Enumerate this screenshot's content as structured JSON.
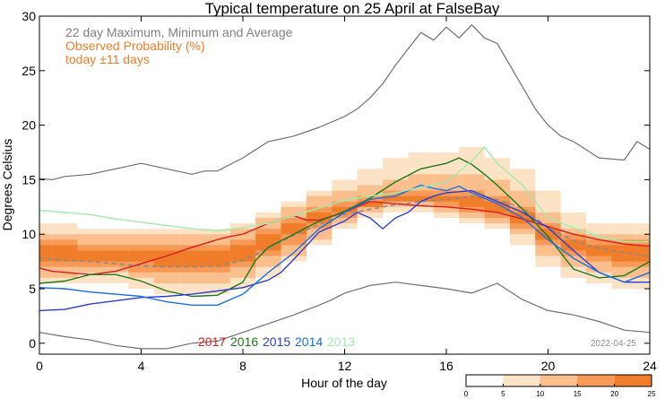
{
  "chart_data": {
    "type": "line",
    "title": "Typical temperature on 25 April at FalseBay",
    "xlabel": "Hour of the day",
    "ylabel": "Degrees Celsius",
    "xlim": [
      0,
      24
    ],
    "ylim": [
      -1,
      30
    ],
    "x_ticks": [
      0,
      4,
      8,
      12,
      16,
      20,
      24
    ],
    "y_ticks": [
      0,
      5,
      10,
      15,
      20,
      25,
      30
    ],
    "annotations": {
      "legend_line1": "22 day Maximum, Minimum and Average",
      "legend_line2": "Observed Probability (%)",
      "legend_line3": "today ±11 days",
      "date_stamp": "2022-04-25"
    },
    "colors": {
      "max_min": "#707070",
      "average": "#8a8a8a",
      "legend_gray": "#808080",
      "legend_orange": "#f07d2a",
      "prob": [
        "#ffffff",
        "#fde3c6",
        "#fbbf8e",
        "#f79a57",
        "#f07d2a"
      ]
    },
    "colorbar": {
      "ticks": [
        "0",
        "5",
        "10",
        "15",
        "20",
        "25"
      ],
      "bins": [
        0,
        5,
        10,
        15,
        20,
        25
      ]
    },
    "hour_bands": {
      "hours": [
        0,
        1,
        2,
        3,
        4,
        5,
        6,
        7,
        8,
        9,
        10,
        11,
        12,
        13,
        14,
        15,
        16,
        17,
        18,
        19,
        20,
        21,
        22,
        23,
        24
      ],
      "b1_lo": [
        5.5,
        5.5,
        5.5,
        5.5,
        5.0,
        4.5,
        4.5,
        4.5,
        5.0,
        6.0,
        7.5,
        9.0,
        10.5,
        11.5,
        12.0,
        12.0,
        11.5,
        11.0,
        10.5,
        9.0,
        7.0,
        6.0,
        5.5,
        5.0,
        5.0
      ],
      "b1_hi": [
        11.0,
        11.0,
        10.5,
        10.5,
        10.5,
        10.5,
        10.5,
        10.5,
        11.0,
        12.0,
        13.0,
        14.0,
        15.0,
        16.0,
        17.0,
        17.5,
        17.5,
        18.0,
        17.0,
        16.0,
        14.0,
        12.0,
        11.0,
        11.0,
        11.0
      ],
      "b2_lo": [
        6.0,
        6.0,
        6.5,
        6.5,
        6.0,
        5.5,
        5.5,
        5.5,
        6.0,
        7.0,
        8.0,
        9.5,
        11.0,
        12.0,
        12.5,
        12.5,
        12.0,
        11.5,
        11.0,
        10.0,
        8.0,
        7.0,
        6.5,
        6.0,
        6.0
      ],
      "b2_hi": [
        10.0,
        10.0,
        10.0,
        10.0,
        10.0,
        10.0,
        10.0,
        10.0,
        10.5,
        11.5,
        12.5,
        13.5,
        14.0,
        14.5,
        15.0,
        15.5,
        15.5,
        15.5,
        15.0,
        14.0,
        12.0,
        10.5,
        10.0,
        10.0,
        10.0
      ],
      "b3_lo": [
        7.0,
        7.0,
        7.0,
        7.0,
        6.5,
        6.5,
        6.5,
        6.5,
        7.0,
        8.0,
        9.0,
        10.5,
        11.5,
        12.5,
        13.0,
        13.0,
        12.5,
        12.0,
        11.5,
        10.5,
        9.0,
        8.0,
        7.5,
        7.0,
        7.0
      ],
      "b3_hi": [
        9.5,
        9.5,
        9.0,
        9.0,
        9.0,
        9.0,
        9.0,
        9.0,
        9.5,
        10.5,
        11.5,
        12.5,
        13.0,
        13.5,
        14.0,
        14.0,
        14.0,
        14.0,
        13.5,
        12.5,
        11.0,
        10.0,
        9.5,
        9.5,
        9.5
      ],
      "b4_lo": [
        7.5,
        7.5,
        7.5,
        7.5,
        7.5,
        7.0,
        7.0,
        7.0,
        7.5,
        8.5,
        10.0,
        11.0,
        12.0,
        12.5,
        13.0,
        13.0,
        13.0,
        12.5,
        12.0,
        11.0,
        9.5,
        8.5,
        8.0,
        7.5,
        7.5
      ],
      "b4_hi": [
        9.0,
        9.0,
        8.5,
        8.5,
        8.5,
        8.5,
        8.5,
        8.5,
        9.0,
        10.0,
        11.0,
        12.0,
        12.5,
        13.0,
        13.5,
        13.5,
        13.5,
        13.5,
        13.0,
        12.0,
        10.5,
        9.5,
        9.0,
        9.0,
        9.0
      ]
    },
    "series": [
      {
        "name": "Maximum",
        "color": "#707070",
        "x": [
          0,
          0.5,
          1,
          2,
          3,
          4,
          5,
          6,
          6.5,
          7,
          8,
          9,
          10,
          11,
          12,
          12.5,
          13,
          13.5,
          14,
          14.5,
          15,
          15.5,
          16,
          16.5,
          17,
          17.5,
          18,
          18.5,
          19,
          19.5,
          20,
          20.5,
          21,
          22,
          23,
          23.5,
          24
        ],
        "values": [
          15.1,
          15.0,
          15.3,
          15.5,
          16.0,
          16.5,
          16.0,
          15.5,
          15.8,
          15.8,
          17.0,
          18.5,
          19.0,
          19.8,
          20.8,
          21.5,
          22.5,
          23.8,
          25.5,
          27.0,
          28.5,
          27.8,
          29.0,
          28.0,
          29.2,
          28.0,
          27.5,
          25.5,
          23.5,
          21.5,
          20.0,
          19.0,
          18.5,
          17.0,
          16.8,
          18.5,
          17.8
        ]
      },
      {
        "name": "Minimum",
        "color": "#707070",
        "x": [
          0,
          1,
          2,
          3,
          4,
          5,
          6,
          7,
          8,
          9,
          10,
          11,
          11.5,
          12,
          13,
          14,
          15,
          16,
          17,
          18,
          19,
          20,
          21,
          22,
          23,
          24
        ],
        "values": [
          1.0,
          0.6,
          0.3,
          -0.2,
          -0.5,
          -0.5,
          0.0,
          0.2,
          1.0,
          1.8,
          2.6,
          3.5,
          4.0,
          4.6,
          5.3,
          5.6,
          5.3,
          5.0,
          4.6,
          5.5,
          4.0,
          3.0,
          2.6,
          2.0,
          1.2,
          1.0
        ]
      },
      {
        "name": "Average",
        "color": "#8a8a8a",
        "x": [
          0,
          1,
          2,
          3,
          4,
          5,
          6,
          7,
          8,
          9,
          10,
          11,
          12,
          13,
          14,
          15,
          16,
          17,
          18,
          19,
          20,
          21,
          22,
          23,
          24
        ],
        "values": [
          7.8,
          7.6,
          7.5,
          7.3,
          7.1,
          7.0,
          7.0,
          7.1,
          7.6,
          8.7,
          9.9,
          10.9,
          11.8,
          12.3,
          12.7,
          13.0,
          13.2,
          13.5,
          13.2,
          12.4,
          10.6,
          9.4,
          8.7,
          8.3,
          8.0
        ]
      },
      {
        "name": "2017",
        "color": "#d81e1e",
        "x": [
          0,
          0.5,
          1,
          2,
          3,
          4,
          5,
          6,
          7,
          7.5,
          8,
          9,
          10,
          10.5,
          11,
          12,
          13,
          14,
          15,
          16,
          17,
          18,
          19,
          20,
          21,
          22,
          23,
          24
        ],
        "values": [
          6.9,
          6.6,
          6.5,
          6.3,
          6.6,
          7.3,
          8.0,
          8.8,
          9.5,
          9.8,
          10.0,
          11.0,
          11.7,
          11.3,
          11.3,
          12.0,
          13.0,
          12.8,
          12.6,
          12.5,
          12.3,
          12.0,
          11.4,
          10.7,
          10.0,
          9.5,
          9.1,
          8.9
        ]
      },
      {
        "name": "2016",
        "color": "#1a7a1a",
        "x": [
          0,
          1,
          2,
          3,
          4,
          5,
          6,
          7,
          8,
          8.5,
          9,
          10,
          11,
          12,
          13,
          14,
          15,
          16,
          16.5,
          17,
          17.5,
          18,
          19,
          20,
          21,
          22,
          23,
          24
        ],
        "values": [
          5.5,
          5.7,
          6.3,
          6.3,
          5.7,
          4.8,
          4.3,
          4.4,
          5.6,
          7.6,
          8.8,
          10.0,
          11.2,
          12.1,
          13.3,
          14.8,
          16.0,
          16.5,
          17.0,
          16.4,
          15.5,
          14.5,
          12.3,
          9.8,
          6.8,
          6.0,
          6.2,
          7.5
        ]
      },
      {
        "name": "2015",
        "color": "#2b3fcf",
        "x": [
          0,
          1,
          2,
          3,
          4,
          5,
          6,
          7,
          8,
          9,
          9.5,
          10,
          11,
          12,
          12.5,
          13,
          13.5,
          14,
          14.5,
          15,
          15.5,
          16,
          17,
          17.5,
          18,
          19,
          20,
          21,
          22,
          23,
          24
        ],
        "values": [
          3.0,
          3.1,
          3.6,
          3.9,
          4.2,
          4.3,
          4.5,
          4.8,
          5.1,
          5.8,
          6.5,
          7.7,
          10.2,
          11.2,
          12.0,
          11.5,
          10.5,
          11.5,
          12.0,
          13.0,
          13.5,
          13.8,
          14.0,
          13.5,
          13.0,
          12.0,
          10.6,
          8.5,
          6.5,
          5.6,
          5.6
        ]
      },
      {
        "name": "2014",
        "color": "#1a6fe6",
        "x": [
          0,
          1,
          2,
          3,
          4,
          5,
          6,
          7,
          8,
          9,
          10,
          11,
          12,
          13,
          14,
          15,
          15.5,
          16,
          16.5,
          17,
          18,
          19,
          20,
          21,
          22,
          23,
          24
        ],
        "values": [
          5.1,
          5.0,
          4.7,
          4.5,
          4.3,
          3.8,
          3.5,
          3.5,
          4.5,
          6.5,
          8.3,
          10.5,
          12.0,
          13.2,
          13.5,
          14.5,
          14.2,
          14.0,
          14.4,
          13.8,
          12.8,
          11.5,
          9.5,
          7.8,
          6.5,
          5.6,
          6.5
        ]
      },
      {
        "name": "2013",
        "color": "#a0ecac",
        "x": [
          0,
          1,
          2,
          3,
          4,
          5,
          6,
          7,
          8,
          9,
          10,
          11,
          12,
          13,
          14,
          15,
          16,
          17,
          17.5,
          18,
          19,
          20,
          21,
          22,
          23,
          24
        ],
        "values": [
          12.2,
          12.0,
          11.8,
          11.4,
          11.1,
          10.8,
          10.5,
          10.3,
          10.6,
          11.0,
          11.7,
          12.4,
          13.1,
          13.5,
          13.8,
          14.3,
          14.8,
          16.7,
          18.0,
          16.5,
          14.5,
          11.5,
          10.6,
          9.8,
          9.3,
          9.3
        ]
      }
    ],
    "year_labels": [
      {
        "text": "2017",
        "color": "#d81e1e"
      },
      {
        "text": "2016",
        "color": "#1a7a1a"
      },
      {
        "text": "2015",
        "color": "#2b3fcf"
      },
      {
        "text": "2014",
        "color": "#1a6fe6"
      },
      {
        "text": "2013",
        "color": "#a0ecac"
      }
    ]
  }
}
